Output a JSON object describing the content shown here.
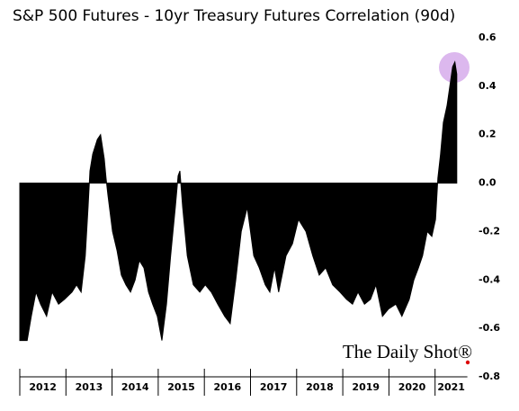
{
  "chart_data": {
    "type": "area",
    "title": "S&P 500 Futures - 10yr Treasury Futures Correlation (90d)",
    "watermark": "The Daily Shot®",
    "color": "#000000",
    "x": [
      2012.0,
      2012.16,
      2012.25,
      2012.35,
      2012.45,
      2012.58,
      2012.7,
      2012.84,
      2012.97,
      2013.13,
      2013.23,
      2013.33,
      2013.42,
      2013.48,
      2013.52,
      2013.58,
      2013.68,
      2013.75,
      2013.83,
      2013.87,
      2013.91,
      2014.01,
      2014.11,
      2014.2,
      2014.3,
      2014.4,
      2014.5,
      2014.59,
      2014.69,
      2014.79,
      2014.88,
      2014.98,
      2015.08,
      2015.18,
      2015.27,
      2015.37,
      2015.43,
      2015.47,
      2015.53,
      2015.63,
      2015.76,
      2015.9,
      2016.02,
      2016.15,
      2016.29,
      2016.44,
      2016.56,
      2016.68,
      2016.8,
      2016.93,
      2017.07,
      2017.19,
      2017.32,
      2017.42,
      2017.52,
      2017.61,
      2017.77,
      2017.91,
      2018.04,
      2018.2,
      2018.35,
      2018.49,
      2018.63,
      2018.78,
      2018.94,
      2019.08,
      2019.21,
      2019.33,
      2019.47,
      2019.6,
      2019.72,
      2019.86,
      2019.99,
      2020.15,
      2020.28,
      2020.44,
      2020.54,
      2020.64,
      2020.73,
      2020.83,
      2020.93,
      2021.01,
      2021.06,
      2021.12,
      2021.18,
      2021.26,
      2021.32,
      2021.38,
      2021.43,
      2021.47
    ],
    "values": [
      -0.65,
      -0.65,
      -0.55,
      -0.45,
      -0.5,
      -0.55,
      -0.45,
      -0.5,
      -0.48,
      -0.45,
      -0.42,
      -0.45,
      -0.3,
      -0.1,
      0.05,
      0.12,
      0.18,
      0.2,
      0.1,
      0.02,
      -0.05,
      -0.2,
      -0.28,
      -0.38,
      -0.42,
      -0.45,
      -0.4,
      -0.32,
      -0.35,
      -0.45,
      -0.5,
      -0.55,
      -0.65,
      -0.5,
      -0.3,
      -0.1,
      0.03,
      0.05,
      -0.1,
      -0.3,
      -0.42,
      -0.45,
      -0.42,
      -0.45,
      -0.5,
      -0.55,
      -0.58,
      -0.4,
      -0.2,
      -0.1,
      -0.3,
      -0.35,
      -0.42,
      -0.45,
      -0.35,
      -0.45,
      -0.3,
      -0.25,
      -0.15,
      -0.2,
      -0.3,
      -0.38,
      -0.35,
      -0.42,
      -0.45,
      -0.48,
      -0.5,
      -0.45,
      -0.5,
      -0.48,
      -0.42,
      -0.55,
      -0.52,
      -0.5,
      -0.55,
      -0.48,
      -0.4,
      -0.35,
      -0.3,
      -0.2,
      -0.22,
      -0.15,
      0.02,
      0.12,
      0.25,
      0.32,
      0.4,
      0.48,
      0.5,
      0.45
    ],
    "xlim": [
      2012,
      2021.7
    ],
    "xticks": [
      2012,
      2013,
      2014,
      2015,
      2016,
      2017,
      2018,
      2019,
      2020,
      2021
    ],
    "ylim": [
      -0.8,
      0.6
    ],
    "yticks": [
      {
        "value": 0.6,
        "label": "0.6"
      },
      {
        "value": 0.4,
        "label": "0.4"
      },
      {
        "value": 0.2,
        "label": "0.2"
      },
      {
        "value": 0,
        "label": "0.0"
      },
      {
        "value": -0.2,
        "label": "-0.2"
      },
      {
        "value": -0.4,
        "label": "-0.4"
      },
      {
        "value": -0.6,
        "label": "-0.6"
      },
      {
        "value": -0.8,
        "label": "-0.8"
      }
    ]
  }
}
